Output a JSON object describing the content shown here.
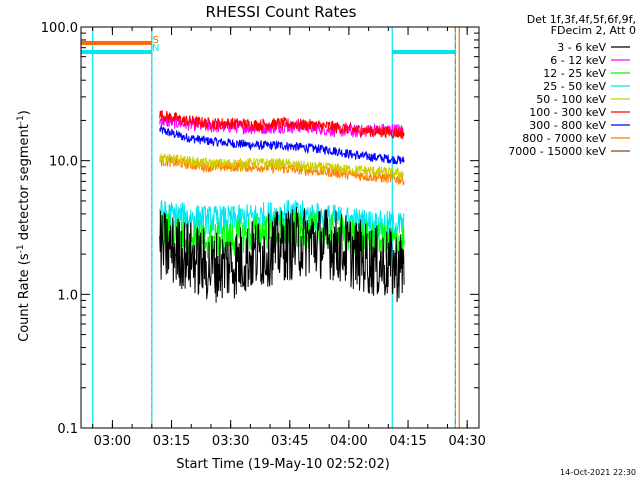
{
  "chart_data": {
    "type": "line",
    "title": "RHESSI Count Rates",
    "xlabel": "Start Time (19-May-10 02:52:02)",
    "ylabel": "Count Rate (s⁻¹ detector segment⁻¹)",
    "ylabel_main": "Count Rate (s",
    "ylabel_mid": " detector segment",
    "ylabel_end": ")",
    "ylabel_exp": "-1",
    "yscale": "log",
    "ylim": [
      0.1,
      100.0
    ],
    "xlim_minutes": [
      "02:52:02",
      "04:33"
    ],
    "x_ticks": [
      "03:00",
      "03:15",
      "03:30",
      "03:45",
      "04:00",
      "04:15",
      "04:30"
    ],
    "y_ticks": [
      "0.1",
      "1.0",
      "10.0",
      "100.0"
    ],
    "legend_header": [
      "Det 1f,3f,4f,5f,6f,9f,",
      "FDecim 2, Att 0"
    ],
    "legend_position": "top-right",
    "markers": [
      {
        "label": "S",
        "time": "03:11",
        "color": "#ff6a00"
      },
      {
        "label": "N",
        "time": "03:11",
        "color": "#00e5ee"
      }
    ],
    "vertical_lines": [
      {
        "time": "02:55",
        "color": "#00e5ee",
        "style": "solid"
      },
      {
        "time": "03:10",
        "color": "#ff6a00",
        "style": "dashed"
      },
      {
        "time": "03:10",
        "color": "#00e5ee",
        "style": "solid"
      },
      {
        "time": "04:11",
        "color": "#00e5ee",
        "style": "solid"
      },
      {
        "time": "04:27",
        "color": "#00e5ee",
        "style": "solid"
      },
      {
        "time": "04:27",
        "color": "#ff6a00",
        "style": "dashed"
      },
      {
        "time": "04:28",
        "color": "#ff6a00",
        "style": "solid"
      }
    ],
    "series": [
      {
        "name": "3 - 6 keV",
        "color": "#000000",
        "start": "03:12",
        "end": "04:14",
        "values": [
          2.3,
          2.0,
          1.6,
          1.7,
          2.0,
          2.3,
          2.5,
          2.4,
          2.0,
          1.7,
          1.6
        ],
        "noise": 0.55
      },
      {
        "name": "6 - 12 keV",
        "color": "#ff00ff",
        "start": "03:12",
        "end": "04:14",
        "values": [
          20,
          19,
          18,
          18,
          17.5,
          18,
          18,
          17,
          16.5,
          17,
          17
        ],
        "noise": 0.1
      },
      {
        "name": "12 - 25 keV",
        "color": "#00ff00",
        "start": "03:12",
        "end": "04:14",
        "values": [
          3.1,
          2.8,
          2.5,
          2.6,
          2.9,
          3.0,
          3.0,
          2.9,
          2.7,
          2.5,
          2.5
        ],
        "noise": 0.28
      },
      {
        "name": "25 - 50 keV",
        "color": "#00e5ee",
        "start": "03:12",
        "end": "04:14",
        "values": [
          4.0,
          3.8,
          3.6,
          3.6,
          3.8,
          4.0,
          3.9,
          3.7,
          3.5,
          3.3,
          3.3
        ],
        "noise": 0.22
      },
      {
        "name": "50 - 100 keV",
        "color": "#cdcd00",
        "start": "03:12",
        "end": "04:14",
        "values": [
          10.5,
          10.0,
          9.5,
          9.5,
          9.6,
          9.5,
          9.0,
          8.8,
          8.5,
          8.3,
          8.0
        ],
        "noise": 0.08
      },
      {
        "name": "100 - 300 keV",
        "color": "#ff0000",
        "start": "03:12",
        "end": "04:14",
        "values": [
          22,
          20,
          19,
          19,
          18.5,
          19,
          18.5,
          18,
          17,
          16.5,
          16
        ],
        "noise": 0.09
      },
      {
        "name": "300 - 800 keV",
        "color": "#0000ff",
        "start": "03:12",
        "end": "04:14",
        "values": [
          17,
          15,
          14,
          13.5,
          13,
          13,
          12.5,
          12,
          11,
          10.5,
          10
        ],
        "noise": 0.07
      },
      {
        "name": "800 - 7000 keV",
        "color": "#ff7f00",
        "start": "03:12",
        "end": "04:14",
        "values": [
          10,
          9.5,
          9.0,
          9.0,
          9.0,
          8.8,
          8.5,
          8.2,
          7.8,
          7.5,
          7.2
        ],
        "noise": 0.08
      },
      {
        "name": "7000 - 15000 keV",
        "color": "#8b4513",
        "start": "03:12",
        "end": "04:14",
        "values": [],
        "noise": 0
      }
    ],
    "bars": [
      {
        "color": "#ff6a00",
        "start": "02:52",
        "end": "03:10",
        "y": 76
      },
      {
        "color": "#00e5ee",
        "start": "02:52",
        "end": "03:10",
        "y": 65
      },
      {
        "color": "#00e5ee",
        "start": "04:11",
        "end": "04:27",
        "y": 65
      }
    ],
    "grid": false
  },
  "footer_timestamp": "14-Oct-2021 22:30"
}
